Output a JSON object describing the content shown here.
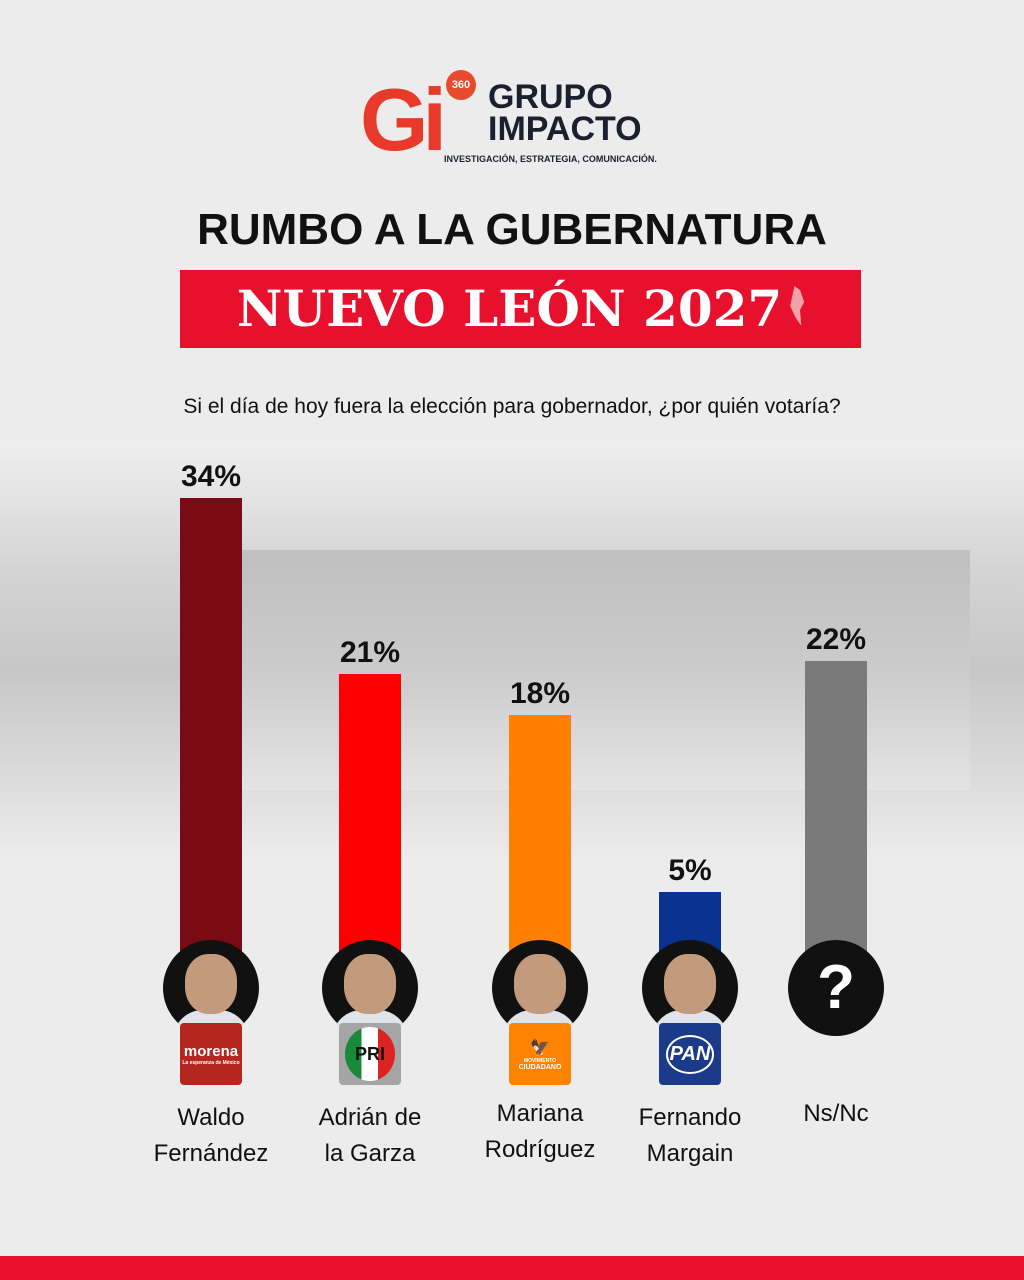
{
  "brand": {
    "mark": "Gi",
    "badge": "360",
    "line1": "GRUPO",
    "line2": "IMPACTO",
    "tagline": "INVESTIGACIÓN, ESTRATEGIA, COMUNICACIÓN."
  },
  "title": "RUMBO A LA GUBERNATURA",
  "banner": "NUEVO LEÓN 2027",
  "question": "Si el día de hoy fuera la elección para gobernador, ¿por quién votaría?",
  "chart_data": {
    "type": "bar",
    "categories": [
      "Waldo Fernández",
      "Adrián de la Garza",
      "Mariana Rodríguez",
      "Fernando Margain",
      "Ns/Nc"
    ],
    "values": [
      34,
      21,
      18,
      5,
      22
    ],
    "labels": [
      "34%",
      "21%",
      "18%",
      "5%",
      "22%"
    ],
    "colors": [
      "#7a0a14",
      "#ff0000",
      "#ff8000",
      "#0a3291",
      "#7a7a7a"
    ],
    "parties": [
      "morena",
      "PRI",
      "MOVIMIENTO CIUDADANO",
      "PAN",
      ""
    ],
    "ylim": [
      0,
      36
    ]
  },
  "names": [
    [
      "Waldo",
      "Fernández"
    ],
    [
      "Adrián de",
      "la Garza"
    ],
    [
      "Mariana",
      "Rodríguez"
    ],
    [
      "Fernando",
      "Margain"
    ],
    [
      "Ns/Nc",
      ""
    ]
  ],
  "party_text": {
    "morena": "morena",
    "morena_sub": "La esperanza de México",
    "pri": "PRI",
    "mc1": "MOVIMIENTO",
    "mc2": "CIUDADANO",
    "pan": "PAN"
  },
  "unknown_symbol": "?"
}
